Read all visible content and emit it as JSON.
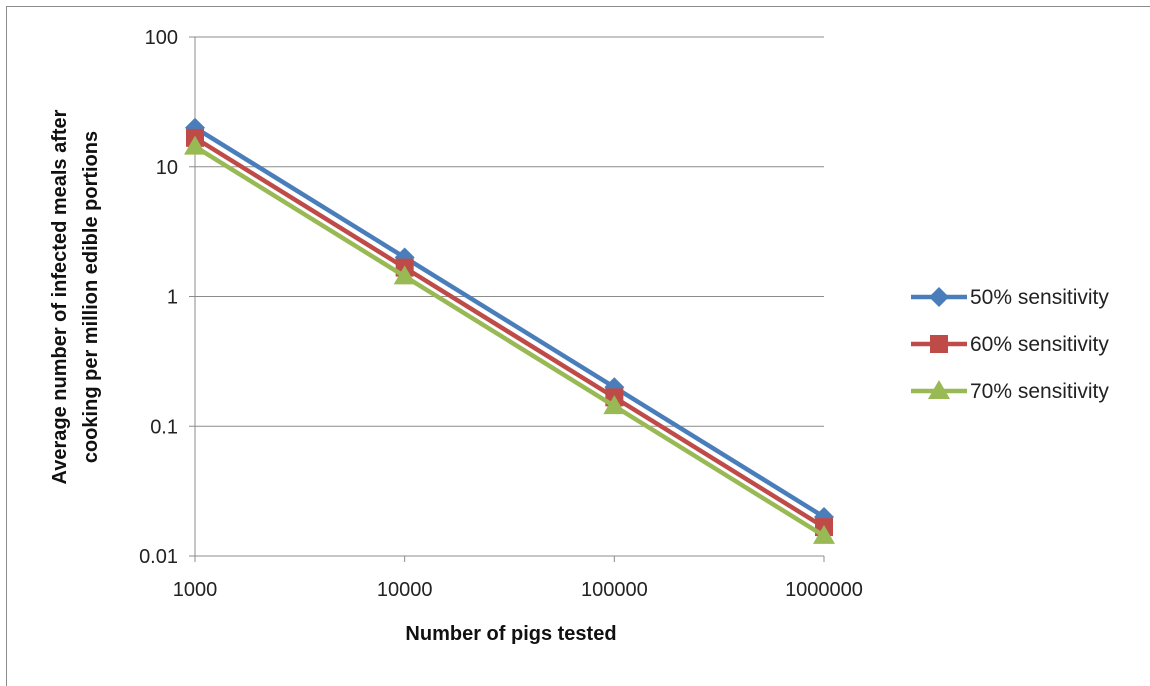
{
  "chart_data": {
    "type": "line",
    "title": "",
    "xlabel": "Number of pigs tested",
    "ylabel_lines": [
      "Average number of infected meals after",
      "cooking per million edible portions"
    ],
    "x_scale": "log",
    "y_scale": "log",
    "x": [
      1000,
      10000,
      100000,
      1000000
    ],
    "x_tick_labels": [
      "1000",
      "10000",
      "100000",
      "1000000"
    ],
    "y_ticks": [
      0.01,
      0.1,
      1,
      10,
      100
    ],
    "y_tick_labels": [
      "0.01",
      "0.1",
      "1",
      "10",
      "100"
    ],
    "xlim": [
      1000,
      1000000
    ],
    "ylim": [
      0.01,
      100
    ],
    "grid": "horizontal",
    "legend_position": "right",
    "series": [
      {
        "name": "50% sensitivity",
        "values": [
          20,
          2,
          0.2,
          0.02
        ],
        "color": "#4a7ebb",
        "marker": "diamond"
      },
      {
        "name": "60% sensitivity",
        "values": [
          16.7,
          1.67,
          0.167,
          0.0167
        ],
        "color": "#be4b48",
        "marker": "square"
      },
      {
        "name": "70% sensitivity",
        "values": [
          14.3,
          1.43,
          0.143,
          0.0143
        ],
        "color": "#98b954",
        "marker": "triangle"
      }
    ]
  }
}
